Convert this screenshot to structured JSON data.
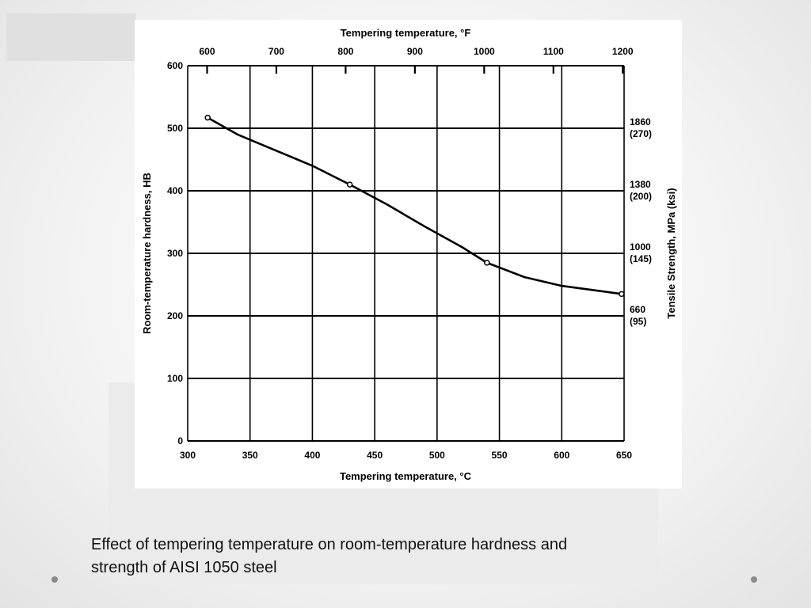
{
  "slide": {
    "caption_lines": [
      "Effect of tempering temperature on room-temperature hardness and",
      "strength of AISI 1050 steel"
    ]
  },
  "chart_data": {
    "type": "line",
    "title": "",
    "x_bottom": {
      "label": "Tempering temperature, °C",
      "range": [
        300,
        650
      ],
      "ticks": [
        300,
        350,
        400,
        450,
        500,
        550,
        600,
        650
      ],
      "tick_labels": [
        "300",
        "350",
        "400",
        "450",
        "500",
        "550",
        "600",
        "650"
      ]
    },
    "x_top": {
      "label": "Tempering temperature, °F",
      "ticks": [
        600,
        700,
        800,
        900,
        1000,
        1100,
        1200
      ],
      "tick_labels": [
        "600",
        "700",
        "800",
        "900",
        "1000",
        "1100",
        "1200"
      ]
    },
    "y_left": {
      "label": "Room-temperature hardness, HB",
      "range": [
        0,
        600
      ],
      "ticks": [
        0,
        100,
        200,
        300,
        400,
        500,
        600
      ],
      "tick_labels": [
        "0",
        "100",
        "200",
        "300",
        "400",
        "500",
        "600"
      ]
    },
    "y_right": {
      "label": "Tensile Strength, MPa (ksi)",
      "ticks": [
        {
          "hb": 500,
          "mpa": "1860",
          "ksi": "(270)"
        },
        {
          "hb": 400,
          "mpa": "1380",
          "ksi": "(200)"
        },
        {
          "hb": 300,
          "mpa": "1000",
          "ksi": "(145)"
        },
        {
          "hb": 200,
          "mpa": "660",
          "ksi": "(95)"
        }
      ]
    },
    "grid": true,
    "series": [
      {
        "markers": [
          [
            316,
            517
          ],
          [
            430,
            410
          ],
          [
            540,
            285
          ],
          [
            648,
            235
          ]
        ],
        "curve": [
          [
            316,
            517
          ],
          [
            340,
            490
          ],
          [
            370,
            465
          ],
          [
            400,
            440
          ],
          [
            430,
            410
          ],
          [
            460,
            378
          ],
          [
            490,
            343
          ],
          [
            520,
            310
          ],
          [
            540,
            285
          ],
          [
            570,
            262
          ],
          [
            600,
            248
          ],
          [
            630,
            240
          ],
          [
            648,
            235
          ]
        ]
      }
    ]
  }
}
